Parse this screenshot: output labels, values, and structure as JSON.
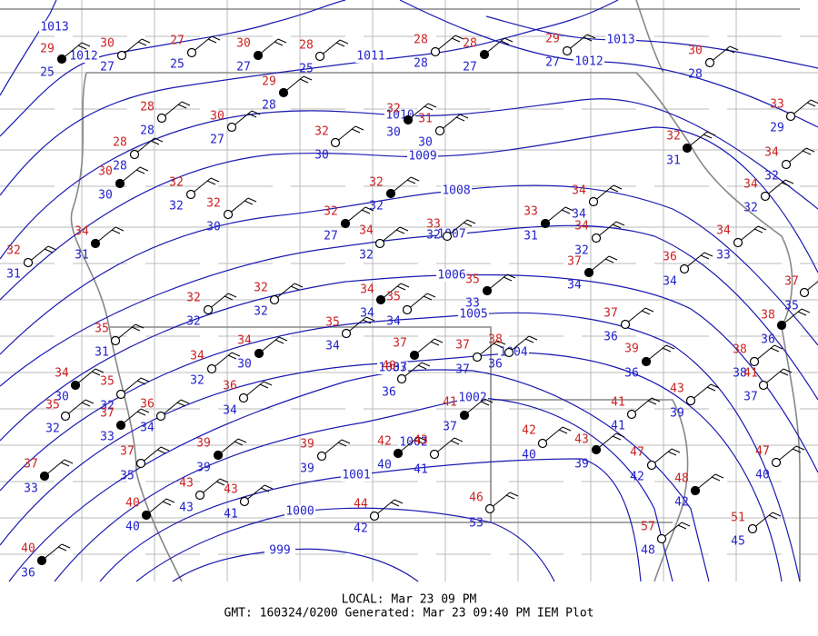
{
  "isobar_labels": [
    1013,
    1012,
    1011,
    1013,
    1012,
    1010,
    1009,
    1008,
    1007,
    1006,
    1005,
    1004,
    1003,
    1002,
    1002,
    1001,
    1000,
    999
  ],
  "stations": [
    {
      "temperature": 29,
      "dewpoint": 25
    },
    {
      "temperature": 30,
      "dewpoint": 27
    },
    {
      "temperature": 27,
      "dewpoint": 25
    },
    {
      "temperature": 30,
      "dewpoint": 27
    },
    {
      "temperature": 28,
      "dewpoint": 25
    },
    {
      "temperature": 28,
      "dewpoint": 28
    },
    {
      "temperature": 28,
      "dewpoint": 27
    },
    {
      "temperature": 29,
      "dewpoint": 27
    },
    {
      "temperature": 30,
      "dewpoint": 28
    },
    {
      "temperature": 29,
      "dewpoint": 28
    },
    {
      "temperature": 28,
      "dewpoint": 28
    },
    {
      "temperature": 30,
      "dewpoint": 27
    },
    {
      "temperature": 32,
      "dewpoint": 30
    },
    {
      "temperature": 31,
      "dewpoint": 30
    },
    {
      "temperature": 32,
      "dewpoint": 30
    },
    {
      "temperature": 32,
      "dewpoint": 31
    },
    {
      "temperature": 33,
      "dewpoint": 29
    },
    {
      "temperature": 28,
      "dewpoint": 28
    },
    {
      "temperature": 30,
      "dewpoint": 30
    },
    {
      "temperature": 32,
      "dewpoint": 32
    },
    {
      "temperature": 32,
      "dewpoint": 30
    },
    {
      "temperature": 32,
      "dewpoint": 32
    },
    {
      "temperature": 34,
      "dewpoint": 32
    },
    {
      "temperature": 34,
      "dewpoint": 32
    },
    {
      "temperature": 32,
      "dewpoint": 27
    },
    {
      "temperature": 34,
      "dewpoint": 32
    },
    {
      "temperature": 33,
      "dewpoint": 32
    },
    {
      "temperature": 33,
      "dewpoint": 31
    },
    {
      "temperature": 34,
      "dewpoint": 34
    },
    {
      "temperature": 34,
      "dewpoint": 32
    },
    {
      "temperature": 34,
      "dewpoint": 31
    },
    {
      "temperature": 32,
      "dewpoint": 31
    },
    {
      "temperature": 34,
      "dewpoint": 33
    },
    {
      "temperature": 37,
      "dewpoint": 34
    },
    {
      "temperature": 36,
      "dewpoint": 34
    },
    {
      "temperature": 37,
      "dewpoint": 35
    },
    {
      "temperature": 35,
      "dewpoint": 33
    },
    {
      "temperature": 32,
      "dewpoint": 32
    },
    {
      "temperature": 32,
      "dewpoint": 32
    },
    {
      "temperature": 34,
      "dewpoint": 34
    },
    {
      "temperature": 35,
      "dewpoint": 34
    },
    {
      "temperature": 37,
      "dewpoint": 36
    },
    {
      "temperature": 38,
      "dewpoint": 36
    },
    {
      "temperature": 35,
      "dewpoint": 31
    },
    {
      "temperature": 35,
      "dewpoint": 34
    },
    {
      "temperature": 37,
      "dewpoint": 37
    },
    {
      "temperature": 37,
      "dewpoint": 37
    },
    {
      "temperature": 38,
      "dewpoint": 36
    },
    {
      "temperature": 39,
      "dewpoint": 36
    },
    {
      "temperature": 38,
      "dewpoint": 38
    },
    {
      "temperature": 41,
      "dewpoint": 37
    },
    {
      "temperature": 34,
      "dewpoint": 30
    },
    {
      "temperature": 34,
      "dewpoint": 32
    },
    {
      "temperature": 40,
      "dewpoint": 36
    },
    {
      "temperature": 34,
      "dewpoint": 30
    },
    {
      "temperature": 35,
      "dewpoint": 32
    },
    {
      "temperature": 35,
      "dewpoint": 32
    },
    {
      "temperature": 37,
      "dewpoint": 33
    },
    {
      "temperature": 36,
      "dewpoint": 34
    },
    {
      "temperature": 36,
      "dewpoint": 34
    },
    {
      "temperature": 41,
      "dewpoint": 37
    },
    {
      "temperature": 41,
      "dewpoint": 41
    },
    {
      "temperature": 43,
      "dewpoint": 39
    },
    {
      "temperature": 39,
      "dewpoint": 39
    },
    {
      "temperature": 37,
      "dewpoint": 35
    },
    {
      "temperature": 39,
      "dewpoint": 39
    },
    {
      "temperature": 42,
      "dewpoint": 40
    },
    {
      "temperature": 43,
      "dewpoint": 41
    },
    {
      "temperature": 42,
      "dewpoint": 40
    },
    {
      "temperature": 43,
      "dewpoint": 39
    },
    {
      "temperature": 47,
      "dewpoint": 42
    },
    {
      "temperature": 47,
      "dewpoint": 40
    },
    {
      "temperature": 37,
      "dewpoint": 33
    },
    {
      "temperature": 43,
      "dewpoint": 43
    },
    {
      "temperature": 43,
      "dewpoint": 41
    },
    {
      "temperature": 48,
      "dewpoint": 42
    },
    {
      "temperature": 44,
      "dewpoint": 42
    },
    {
      "temperature": 46,
      "dewpoint": 53
    },
    {
      "temperature": 40,
      "dewpoint": 40
    },
    {
      "temperature": 57,
      "dewpoint": 48
    },
    {
      "temperature": 51,
      "dewpoint": 45
    },
    {
      "temperature": 40,
      "dewpoint": 36
    }
  ],
  "footer": {
    "local": "LOCAL: Mar 23 09 PM",
    "generated": "GMT: 160324/0200 Generated: Mar 23 09:40 PM IEM Plot"
  }
}
